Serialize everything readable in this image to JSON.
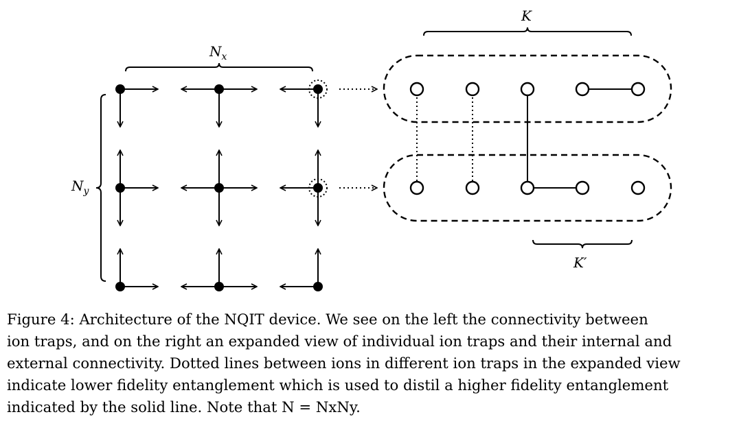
{
  "labels": {
    "nx_main": "N",
    "nx_sub": "x",
    "ny_main": "N",
    "ny_sub": "y",
    "k": "K",
    "k_prime": "K′"
  },
  "caption": {
    "line1": "Figure 4: Architecture of the NQIT device. We see on the left the connectivity between",
    "line2": "ion traps, and on the right an expanded view of individual ion traps and their internal and",
    "line3": "external connectivity. Dotted lines between ions in different ion traps in the expanded view",
    "line4": "indicate lower fidelity entanglement which is used to distil a higher fidelity entanglement",
    "line5": "indicated by the solid line. Note that N = NxNy."
  },
  "colors": {
    "ink": "#000000",
    "background": "#ffffff"
  }
}
